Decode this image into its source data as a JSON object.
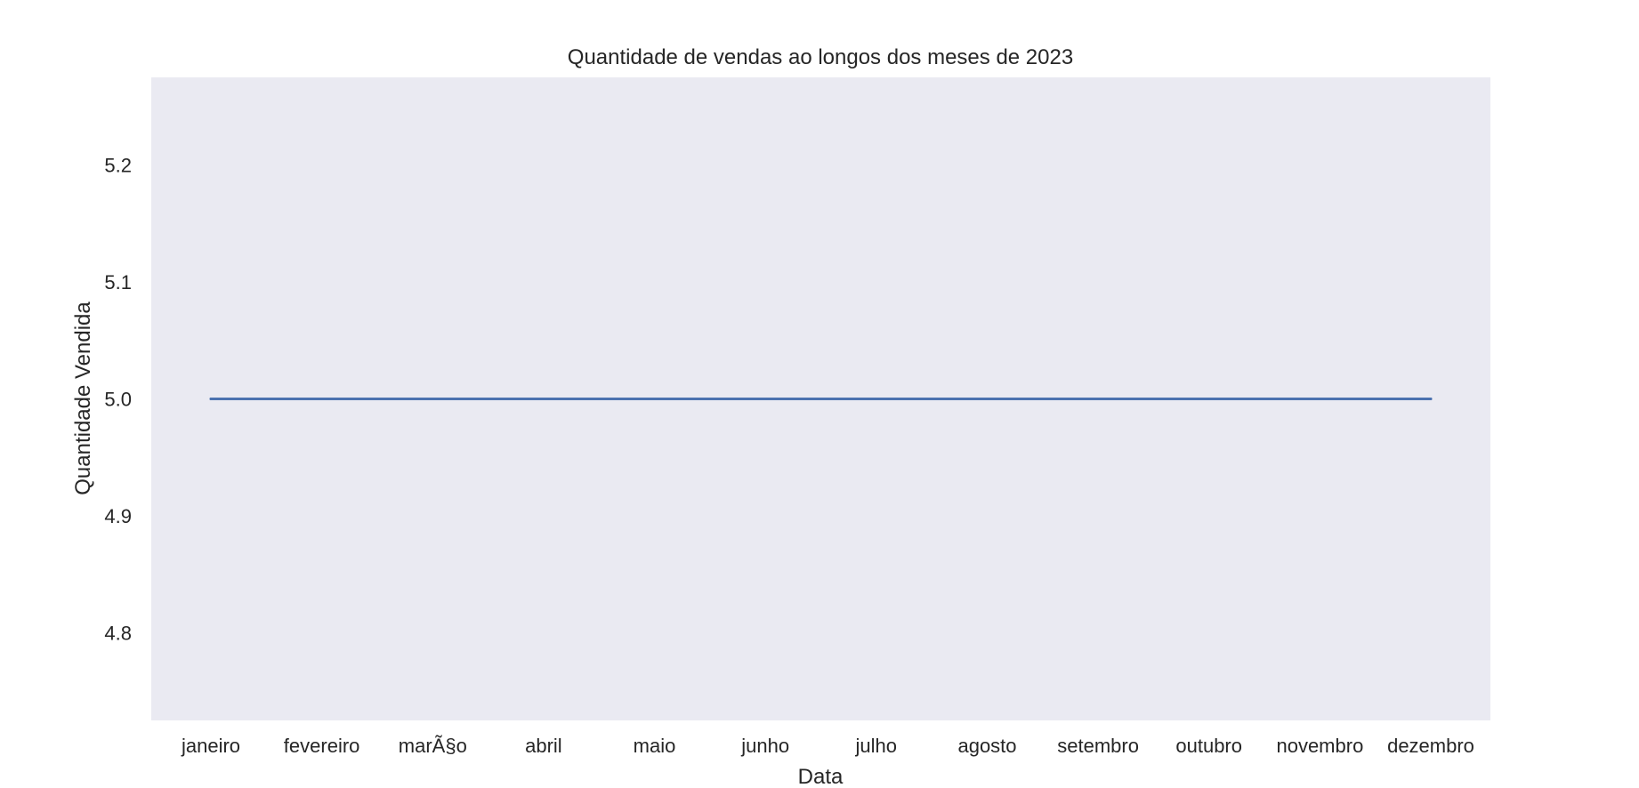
{
  "chart_data": {
    "type": "line",
    "title": "Quantidade de vendas ao longos dos meses de 2023",
    "xlabel": "Data",
    "ylabel": "Quantidade Vendida",
    "categories": [
      "janeiro",
      "fevereiro",
      "marÃ§o",
      "abril",
      "maio",
      "junho",
      "julho",
      "agosto",
      "setembro",
      "outubro",
      "novembro",
      "dezembro"
    ],
    "series": [
      {
        "values": [
          5,
          5,
          5,
          5,
          5,
          5,
          5,
          5,
          5,
          5,
          5,
          5
        ]
      }
    ],
    "ylim": [
      4.725,
      5.275
    ],
    "yticks": [
      4.8,
      4.9,
      5.0,
      5.1,
      5.2
    ],
    "ytick_labels": [
      "4.8",
      "4.9",
      "5.0",
      "5.1",
      "5.2"
    ],
    "grid": false,
    "colors": {
      "plot_background": "#EAEAF2",
      "line": "#4C72B0",
      "text": "#262626"
    }
  }
}
